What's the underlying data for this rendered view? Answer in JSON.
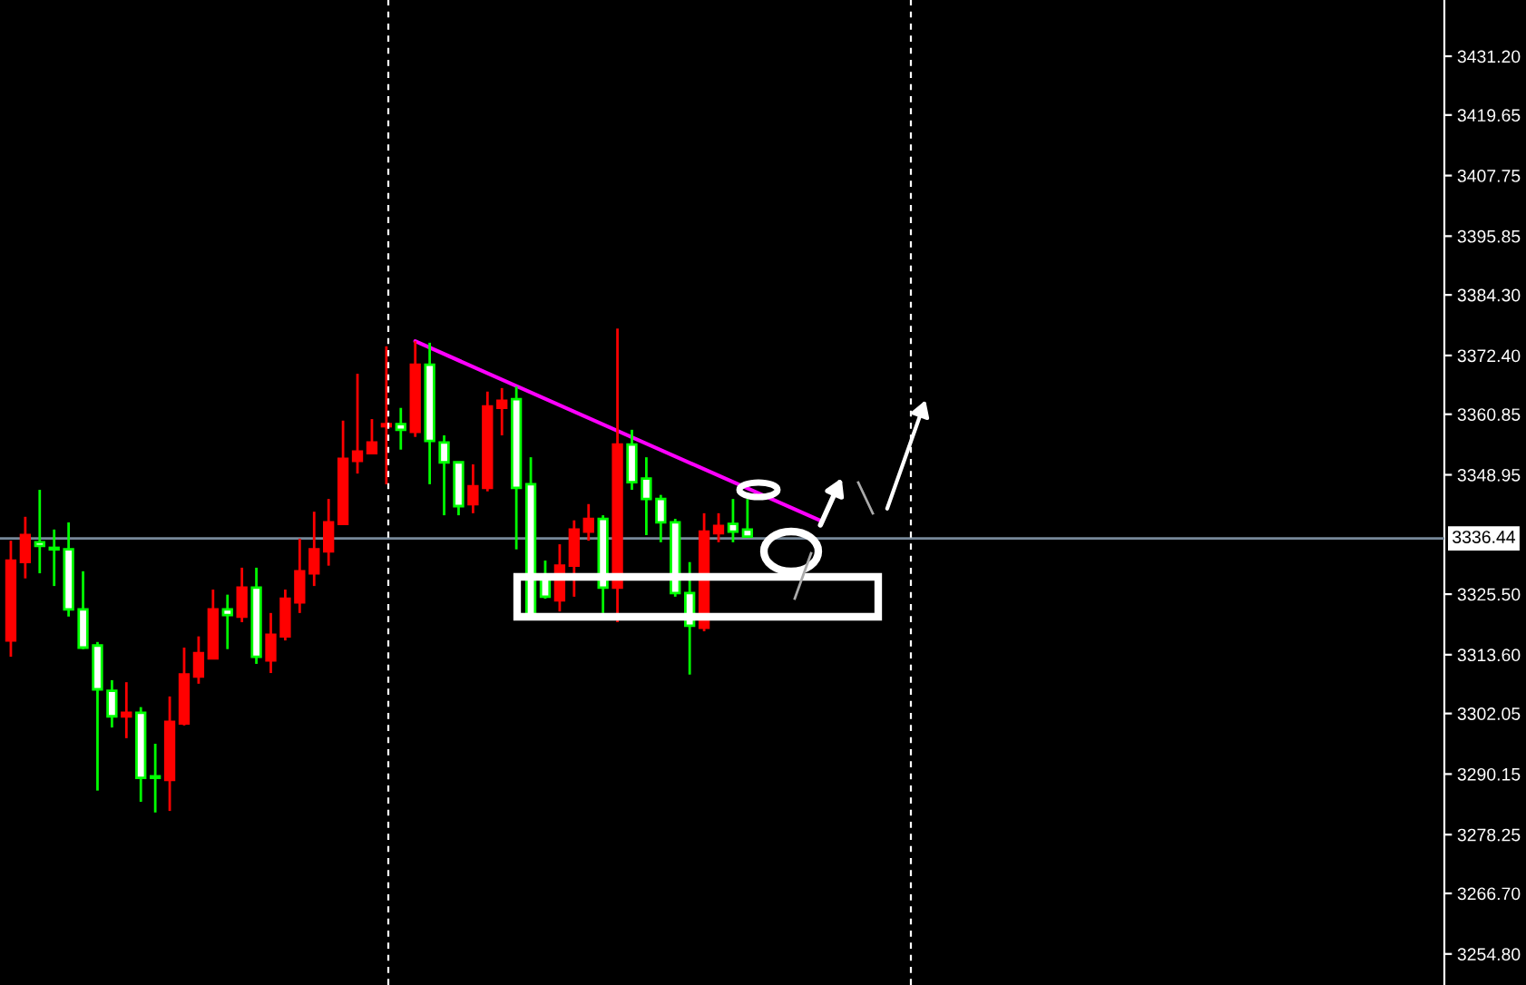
{
  "chart_data": {
    "type": "candlestick",
    "categories": [
      null,
      null,
      null,
      null,
      null,
      null,
      null,
      null,
      null,
      null,
      null,
      null,
      null,
      null,
      null,
      null,
      null,
      null,
      null,
      null,
      null,
      null,
      null,
      null,
      null,
      null,
      null,
      null,
      null,
      null,
      null,
      null,
      null,
      null,
      null,
      null,
      null,
      null,
      null,
      null,
      null,
      null,
      null,
      null,
      null,
      null,
      null,
      null,
      null,
      null,
      null,
      null,
      null,
      null,
      null,
      null,
      null,
      null,
      null,
      null,
      null,
      null,
      null,
      null,
      null,
      null,
      null,
      null,
      null,
      null,
      null,
      null,
      null,
      null,
      null,
      null,
      null,
      null,
      null,
      null,
      null,
      null,
      null,
      null,
      null,
      null,
      null,
      null,
      null,
      null,
      null,
      null,
      null,
      null,
      null,
      null,
      null,
      null,
      null,
      null
    ],
    "ohlc": [
      [
        3316.4,
        3336.0,
        3313.2,
        3332.1
      ],
      [
        3331.8,
        3340.7,
        3328.6,
        3337.1
      ],
      [
        3335.7,
        3346.0,
        3329.6,
        3335.0
      ],
      [
        3334.6,
        3338.2,
        3327.1,
        3334.3
      ],
      [
        3334.3,
        3339.6,
        3321.1,
        3322.5
      ],
      [
        3322.5,
        3330.0,
        3314.7,
        3315.0
      ],
      [
        3315.4,
        3316.1,
        3286.9,
        3306.8
      ],
      [
        3306.5,
        3308.6,
        3299.3,
        3301.5
      ],
      [
        3301.5,
        3308.2,
        3297.2,
        3302.2
      ],
      [
        3302.2,
        3303.3,
        3284.7,
        3289.4
      ],
      [
        3289.7,
        3296.1,
        3282.6,
        3289.4
      ],
      [
        3289.0,
        3305.4,
        3282.9,
        3300.4
      ],
      [
        3300.1,
        3315.0,
        3299.7,
        3309.7
      ],
      [
        3309.3,
        3317.2,
        3307.9,
        3313.9
      ],
      [
        3312.9,
        3326.4,
        3312.9,
        3322.5
      ],
      [
        3322.5,
        3325.4,
        3314.7,
        3321.4
      ],
      [
        3321.1,
        3330.7,
        3320.0,
        3326.8
      ],
      [
        3326.8,
        3330.7,
        3311.8,
        3313.2
      ],
      [
        3312.5,
        3321.8,
        3310.0,
        3317.5
      ],
      [
        3317.2,
        3326.4,
        3316.4,
        3324.6
      ],
      [
        3323.9,
        3336.4,
        3321.8,
        3330.0
      ],
      [
        3329.6,
        3341.7,
        3327.1,
        3334.3
      ],
      [
        3333.9,
        3344.2,
        3331.1,
        3339.6
      ],
      [
        3339.3,
        3359.6,
        3339.3,
        3352.1
      ],
      [
        3351.7,
        3368.8,
        3349.2,
        3353.5
      ],
      [
        3353.2,
        3359.9,
        3353.2,
        3355.3
      ],
      [
        3358.5,
        3374.2,
        3347.1,
        3358.9
      ],
      [
        3358.9,
        3362.1,
        3353.9,
        3357.8
      ],
      [
        3357.4,
        3375.2,
        3356.4,
        3370.6
      ],
      [
        3370.6,
        3374.9,
        3347.1,
        3355.6
      ],
      [
        3355.3,
        3356.7,
        3341.0,
        3351.4
      ],
      [
        3351.4,
        3351.4,
        3341.0,
        3342.8
      ],
      [
        3343.2,
        3351.0,
        3341.4,
        3346.7
      ],
      [
        3346.4,
        3365.3,
        3345.7,
        3362.4
      ],
      [
        3362.1,
        3366.0,
        3356.7,
        3363.5
      ],
      [
        3363.8,
        3366.3,
        3334.3,
        3346.4
      ],
      [
        3347.1,
        3352.4,
        3321.4,
        3321.4
      ],
      [
        3328.6,
        3332.1,
        3324.6,
        3325.0
      ],
      [
        3324.3,
        3335.3,
        3322.1,
        3331.1
      ],
      [
        3331.1,
        3340.0,
        3325.0,
        3338.2
      ],
      [
        3337.8,
        3343.2,
        3336.0,
        3340.3
      ],
      [
        3340.3,
        3341.0,
        3321.8,
        3326.8
      ],
      [
        3326.8,
        3377.7,
        3320.0,
        3354.9
      ],
      [
        3354.9,
        3357.8,
        3346.0,
        3347.5
      ],
      [
        3348.2,
        3352.4,
        3337.1,
        3344.2
      ],
      [
        3344.2,
        3345.0,
        3335.7,
        3339.6
      ],
      [
        3339.6,
        3340.3,
        3325.0,
        3325.7
      ],
      [
        3325.7,
        3331.8,
        3309.7,
        3319.3
      ],
      [
        3318.9,
        3341.4,
        3318.2,
        3337.8
      ],
      [
        3337.5,
        3341.4,
        3335.7,
        3338.9
      ],
      [
        3339.3,
        3344.2,
        3335.7,
        3337.8
      ],
      [
        3338.2,
        3344.2,
        3336.8,
        3336.8
      ],
      null,
      null,
      null,
      null,
      null,
      null,
      null,
      null,
      null,
      null,
      null,
      null,
      null,
      null,
      null,
      null,
      null,
      null,
      null,
      null,
      null,
      null,
      null,
      null,
      null,
      null,
      null,
      null,
      null,
      null,
      null,
      null,
      null,
      null,
      null,
      null,
      null,
      null,
      null,
      null,
      null,
      null,
      null,
      null,
      null,
      null,
      null,
      null
    ],
    "colors": [
      "#ff0000",
      "#ff0000",
      "#00ff00",
      "#00ff00",
      "#00ff00",
      "#00ff00",
      "#00ff00",
      "#00ff00",
      "#ff0000",
      "#00ff00",
      "#00ff00",
      "#ff0000",
      "#ff0000",
      "#ff0000",
      "#ff0000",
      "#00ff00",
      "#ff0000",
      "#00ff00",
      "#ff0000",
      "#ff0000",
      "#ff0000",
      "#ff0000",
      "#ff0000",
      "#ff0000",
      "#ff0000",
      "#ff0000",
      "#ff0000",
      "#00ff00",
      "#ff0000",
      "#00ff00",
      "#00ff00",
      "#00ff00",
      "#ff0000",
      "#ff0000",
      "#ff0000",
      "#00ff00",
      "#00ff00",
      "#00ff00",
      "#ff0000",
      "#ff0000",
      "#ff0000",
      "#00ff00",
      "#ff0000",
      "#00ff00",
      "#00ff00",
      "#00ff00",
      "#00ff00",
      "#00ff00",
      "#ff0000",
      "#ff0000",
      "#00ff00",
      "#00ff00",
      null,
      null,
      null,
      null,
      null,
      null,
      null,
      null,
      null,
      null,
      null,
      null,
      null,
      null,
      null,
      null,
      null,
      null,
      null,
      null,
      null,
      null,
      null,
      null,
      null,
      null,
      null,
      null,
      null,
      null,
      null,
      null,
      null,
      null,
      null,
      null,
      null,
      null,
      null,
      null,
      null,
      null,
      null,
      null,
      null,
      null,
      null,
      null
    ],
    "series": [
      {
        "type": "line",
        "color": "#ff00ff",
        "values": [
          null,
          null,
          null,
          null,
          null,
          null,
          null,
          null,
          null,
          null,
          null,
          null,
          null,
          null,
          null,
          null,
          null,
          null,
          null,
          null,
          null,
          null,
          null,
          null,
          null,
          null,
          null,
          null,
          3375.2,
          null,
          null,
          null,
          null,
          null,
          null,
          null,
          null,
          null,
          null,
          null,
          null,
          null,
          null,
          null,
          null,
          null,
          null,
          null,
          null,
          null,
          null,
          null,
          null,
          null,
          null,
          null,
          3340.0,
          null,
          null,
          null,
          null,
          null,
          null,
          null,
          null,
          null,
          null,
          null,
          null,
          null,
          null,
          null,
          null,
          null,
          null,
          null,
          null,
          null,
          null,
          null,
          null,
          null,
          null,
          null,
          null,
          null,
          null,
          null,
          null,
          null,
          null,
          null,
          null,
          null,
          null,
          null,
          null,
          null,
          null,
          null
        ]
      }
    ],
    "ylim": [
      3248.7,
      3442.25
    ],
    "yticks": [
      {
        "value": 3431.2,
        "label": "3431.20"
      },
      {
        "value": 3419.65,
        "label": "3419.65"
      },
      {
        "value": 3407.75,
        "label": "3407.75"
      },
      {
        "value": 3395.85,
        "label": "3395.85"
      },
      {
        "value": 3384.3,
        "label": "3384.30"
      },
      {
        "value": 3372.4,
        "label": "3372.40"
      },
      {
        "value": 3360.85,
        "label": "3360.85"
      },
      {
        "value": 3348.95,
        "label": "3348.95"
      },
      {
        "value": 3325.5,
        "label": "3325.50"
      },
      {
        "value": 3313.6,
        "label": "3313.60"
      },
      {
        "value": 3302.05,
        "label": "3302.05"
      },
      {
        "value": 3290.15,
        "label": "3290.15"
      },
      {
        "value": 3278.25,
        "label": "3278.25"
      },
      {
        "value": 3266.7,
        "label": "3266.70"
      },
      {
        "value": 3254.8,
        "label": "3254.80"
      }
    ],
    "ref_lines": [
      {
        "axis": "y",
        "value": 3336.44,
        "label": "3336.44",
        "color": "#778899"
      }
    ],
    "grid": false,
    "legend": false
  }
}
